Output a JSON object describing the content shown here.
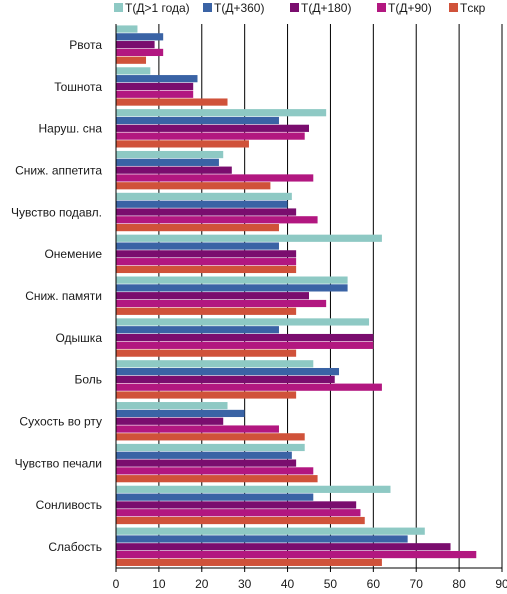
{
  "chart_data": {
    "type": "bar",
    "orientation": "horizontal",
    "categories": [
      "Рвота",
      "Тошнота",
      "Наруш. сна",
      "Сниж. аппетита",
      "Чувство подавл.",
      "Онемение",
      "Сниж. памяти",
      "Одышка",
      "Боль",
      "Сухость во рту",
      "Чувство печали",
      "Сонливость",
      "Слабость"
    ],
    "series": [
      {
        "name": "Т(Д>1 года)",
        "color": "#8ec9c4",
        "values": [
          5,
          8,
          49,
          25,
          41,
          62,
          54,
          59,
          46,
          26,
          44,
          64,
          72
        ]
      },
      {
        "name": "Т(Д+360)",
        "color": "#3a63a5",
        "values": [
          11,
          19,
          38,
          24,
          40,
          38,
          54,
          38,
          52,
          30,
          41,
          46,
          68
        ]
      },
      {
        "name": "Т(Д+180)",
        "color": "#7a0d6e",
        "values": [
          9,
          18,
          45,
          27,
          42,
          42,
          45,
          60,
          51,
          25,
          42,
          56,
          78
        ]
      },
      {
        "name": "Т(Д+90)",
        "color": "#b21780",
        "values": [
          11,
          18,
          44,
          46,
          47,
          42,
          49,
          60,
          62,
          38,
          46,
          57,
          84
        ]
      },
      {
        "name": "Tскр",
        "color": "#d0523a",
        "values": [
          7,
          26,
          31,
          36,
          38,
          42,
          42,
          42,
          42,
          44,
          47,
          58,
          62
        ]
      }
    ],
    "xlim": [
      0,
      90
    ],
    "xticks": [
      "0",
      "10",
      "20",
      "30",
      "40",
      "50",
      "60",
      "70",
      "80",
      "90"
    ],
    "grid": "vertical",
    "legend": "top"
  }
}
